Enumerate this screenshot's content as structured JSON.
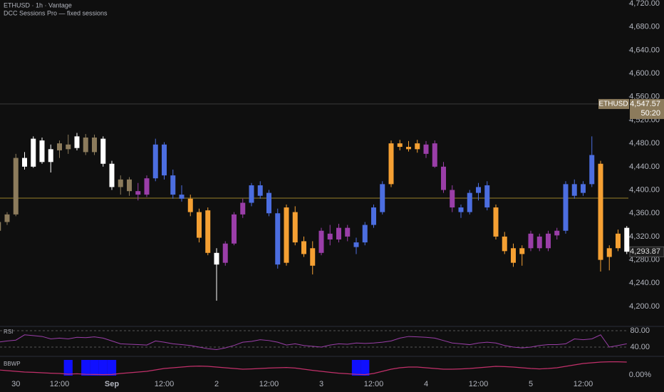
{
  "chart_data": {
    "type": "candlestick",
    "title": "ETHUSD · 1h · Vantage",
    "subtitle": "DCC Sessions Pro — fixed sessions",
    "categories": [
      null,
      null,
      "30",
      null,
      null,
      null,
      null,
      "12:00",
      null,
      null,
      null,
      null,
      null,
      "Sep",
      null,
      null,
      null,
      null,
      null,
      "12:00",
      null,
      null,
      null,
      null,
      null,
      "2",
      null,
      null,
      null,
      null,
      null,
      "12:00",
      null,
      null,
      null,
      null,
      null,
      "3",
      null,
      null,
      null,
      null,
      null,
      "12:00",
      null,
      null,
      null,
      null,
      null,
      "4",
      null,
      null,
      null,
      null,
      null,
      "12:00",
      null,
      null,
      null,
      null,
      null,
      "5",
      null,
      null,
      null,
      null,
      null,
      "12:00",
      null,
      null,
      null,
      null,
      null
    ],
    "ohlc": [
      [
        4330,
        4348,
        4322,
        4345
      ],
      [
        4345,
        4362,
        4340,
        4358
      ],
      [
        4358,
        4462,
        4355,
        4455
      ],
      [
        4455,
        4465,
        4435,
        4440
      ],
      [
        4440,
        4492,
        4438,
        4488
      ],
      [
        4485,
        4490,
        4445,
        4448
      ],
      [
        4448,
        4478,
        4430,
        4470
      ],
      [
        4468,
        4485,
        4455,
        4480
      ],
      [
        4478,
        4495,
        4462,
        4470
      ],
      [
        4472,
        4498,
        4468,
        4492
      ],
      [
        4490,
        4496,
        4460,
        4465
      ],
      [
        4465,
        4495,
        4460,
        4490
      ],
      [
        4488,
        4492,
        4440,
        4445
      ],
      [
        4445,
        4450,
        4400,
        4405
      ],
      [
        4405,
        4425,
        4392,
        4418
      ],
      [
        4418,
        4422,
        4390,
        4398
      ],
      [
        4398,
        4412,
        4382,
        4392
      ],
      [
        4392,
        4425,
        4388,
        4420
      ],
      [
        4420,
        4488,
        4415,
        4478
      ],
      [
        4478,
        4482,
        4418,
        4425
      ],
      [
        4425,
        4435,
        4385,
        4392
      ],
      [
        4392,
        4408,
        4380,
        4385
      ],
      [
        4385,
        4392,
        4355,
        4362
      ],
      [
        4362,
        4368,
        4310,
        4318
      ],
      [
        4365,
        4370,
        4288,
        4292
      ],
      [
        4292,
        4300,
        4210,
        4272
      ],
      [
        4275,
        4312,
        4270,
        4308
      ],
      [
        4308,
        4362,
        4305,
        4358
      ],
      [
        4358,
        4385,
        4352,
        4378
      ],
      [
        4378,
        4412,
        4372,
        4408
      ],
      [
        4408,
        4415,
        4385,
        4390
      ],
      [
        4395,
        4400,
        4355,
        4360
      ],
      [
        4360,
        4368,
        4265,
        4272
      ],
      [
        4275,
        4375,
        4270,
        4370
      ],
      [
        4362,
        4372,
        4305,
        4310
      ],
      [
        4312,
        4320,
        4285,
        4290
      ],
      [
        4300,
        4312,
        4255,
        4270
      ],
      [
        4292,
        4335,
        4288,
        4330
      ],
      [
        4325,
        4340,
        4305,
        4315
      ],
      [
        4315,
        4342,
        4310,
        4335
      ],
      [
        4335,
        4340,
        4312,
        4320
      ],
      [
        4302,
        4318,
        4290,
        4310
      ],
      [
        4310,
        4345,
        4305,
        4340
      ],
      [
        4340,
        4375,
        4335,
        4370
      ],
      [
        4362,
        4415,
        4358,
        4410
      ],
      [
        4410,
        4485,
        4405,
        4480
      ],
      [
        4480,
        4486,
        4468,
        4474
      ],
      [
        4474,
        4484,
        4466,
        4470
      ],
      [
        4470,
        4486,
        4464,
        4480
      ],
      [
        4478,
        4484,
        4455,
        4462
      ],
      [
        4480,
        4485,
        4438,
        4440
      ],
      [
        4440,
        4448,
        4395,
        4400
      ],
      [
        4400,
        4408,
        4362,
        4370
      ],
      [
        4370,
        4375,
        4352,
        4362
      ],
      [
        4362,
        4400,
        4358,
        4395
      ],
      [
        4395,
        4412,
        4382,
        4405
      ],
      [
        4408,
        4415,
        4365,
        4370
      ],
      [
        4370,
        4375,
        4315,
        4320
      ],
      [
        4320,
        4328,
        4290,
        4295
      ],
      [
        4300,
        4308,
        4268,
        4275
      ],
      [
        4290,
        4305,
        4270,
        4300
      ],
      [
        4300,
        4330,
        4295,
        4325
      ],
      [
        4320,
        4325,
        4295,
        4300
      ],
      [
        4300,
        4330,
        4295,
        4325
      ],
      [
        4322,
        4335,
        4315,
        4330
      ],
      [
        4330,
        4415,
        4325,
        4410
      ],
      [
        4410,
        4418,
        4385,
        4390
      ],
      [
        4395,
        4415,
        4390,
        4410
      ],
      [
        4410,
        4492,
        4405,
        4460
      ],
      [
        4445,
        4450,
        4260,
        4280
      ],
      [
        4285,
        4305,
        4262,
        4300
      ],
      [
        4300,
        4332,
        4295,
        4325
      ],
      [
        4335,
        4338,
        4290,
        4294
      ]
    ],
    "colors": [
      "#8c7b5c",
      "#8c7b5c",
      "#8c7b5c",
      "#ffffff",
      "#ffffff",
      "#ffffff",
      "#ffffff",
      "#8c7b5c",
      "#8c7b5c",
      "#ffffff",
      "#8c7b5c",
      "#8c7b5c",
      "#ffffff",
      "#ffffff",
      "#8c7b5c",
      "#8c7b5c",
      "#9a3ea8",
      "#9a3ea8",
      "#4c6ee0",
      "#4c6ee0",
      "#4c6ee0",
      "#4c6ee0",
      "#f5a033",
      "#f5a033",
      "#f5a033",
      "#ffffff",
      "#9a3ea8",
      "#9a3ea8",
      "#9a3ea8",
      "#4c6ee0",
      "#4c6ee0",
      "#4c6ee0",
      "#4c6ee0",
      "#f5a033",
      "#f5a033",
      "#f5a033",
      "#f5a033",
      "#9a3ea8",
      "#9a3ea8",
      "#9a3ea8",
      "#9a3ea8",
      "#4c6ee0",
      "#4c6ee0",
      "#4c6ee0",
      "#4c6ee0",
      "#f5a033",
      "#f5a033",
      "#f5a033",
      "#f5a033",
      "#9a3ea8",
      "#9a3ea8",
      "#9a3ea8",
      "#9a3ea8",
      "#4c6ee0",
      "#4c6ee0",
      "#4c6ee0",
      "#4c6ee0",
      "#f5a033",
      "#f5a033",
      "#f5a033",
      "#f5a033",
      "#9a3ea8",
      "#9a3ea8",
      "#9a3ea8",
      "#9a3ea8",
      "#4c6ee0",
      "#4c6ee0",
      "#4c6ee0",
      "#4c6ee0",
      "#f5a033",
      "#f5a033",
      "#f5a033",
      "#ffffff"
    ],
    "ylim": [
      4200,
      4720
    ],
    "yticks": [
      {
        "value": 4200,
        "label": "4,200.00"
      },
      {
        "value": 4240,
        "label": "4,240.00"
      },
      {
        "value": 4280,
        "label": "4,280.00"
      },
      {
        "value": 4320,
        "label": "4,320.00"
      },
      {
        "value": 4360,
        "label": "4,360.00"
      },
      {
        "value": 4400,
        "label": "4,400.00"
      },
      {
        "value": 4440,
        "label": "4,440.00"
      },
      {
        "value": 4480,
        "label": "4,480.00"
      },
      {
        "value": 4520,
        "label": "4,520.00"
      },
      {
        "value": 4560,
        "label": "4,560.00"
      },
      {
        "value": 4600,
        "label": "4,600.00"
      },
      {
        "value": 4640,
        "label": "4,640.00"
      },
      {
        "value": 4680,
        "label": "4,680.00"
      },
      {
        "value": 4720,
        "label": "4,720.00"
      }
    ],
    "reference_line": {
      "value": 4386,
      "color": "#c8a832"
    },
    "symbol": "ETHUSD",
    "last_price": {
      "value": 4547.57,
      "label": "4,547.57"
    },
    "countdown": "50:20",
    "current_price": {
      "value": 4293.87,
      "label": "4,293.87"
    },
    "rsi": {
      "name": "RSI",
      "color": "#9a3ea8",
      "ylim": [
        20,
        87
      ],
      "yticks": [
        {
          "value": 80,
          "label": "80.00"
        },
        {
          "value": 40,
          "label": "40.00"
        }
      ],
      "values": [
        52,
        55,
        57,
        70,
        68,
        66,
        60,
        62,
        60,
        64,
        63,
        65,
        62,
        55,
        48,
        47,
        46,
        45,
        55,
        52,
        48,
        46,
        44,
        40,
        36,
        34,
        38,
        44,
        52,
        54,
        58,
        56,
        52,
        45,
        48,
        44,
        42,
        40,
        45,
        48,
        47,
        50,
        49,
        50,
        52,
        55,
        62,
        66,
        65,
        64,
        62,
        56,
        50,
        48,
        46,
        50,
        52,
        50,
        44,
        40,
        38,
        40,
        44,
        46,
        46,
        48,
        60,
        58,
        60,
        70,
        40,
        44,
        48
      ]
    },
    "bbwp": {
      "name": "BBWP",
      "color": "#c2306a",
      "highlight_color": "#1010ff",
      "highlight_below": 5,
      "ylim": [
        0,
        100
      ],
      "yticks": [
        {
          "value": 0,
          "label": "0.00%"
        }
      ],
      "values": [
        35,
        30,
        25,
        20,
        18,
        15,
        12,
        10,
        5,
        8,
        4,
        3,
        2,
        3,
        10,
        15,
        20,
        25,
        35,
        45,
        50,
        55,
        60,
        62,
        60,
        55,
        50,
        45,
        40,
        42,
        45,
        48,
        50,
        52,
        48,
        40,
        32,
        25,
        18,
        12,
        8,
        4,
        2,
        10,
        25,
        40,
        50,
        55,
        55,
        50,
        45,
        40,
        40,
        42,
        45,
        50,
        55,
        60,
        58,
        55,
        50,
        45,
        42,
        45,
        50,
        60,
        70,
        80,
        85,
        90,
        92,
        92,
        90
      ]
    }
  }
}
